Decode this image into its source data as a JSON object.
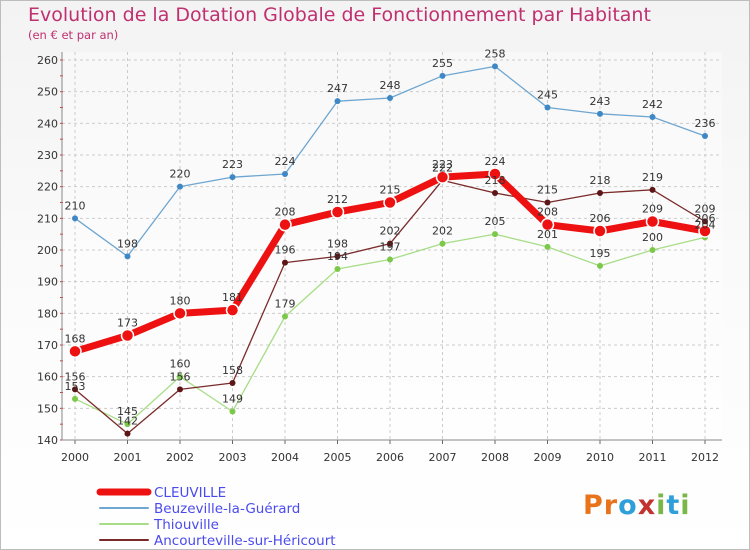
{
  "header": {
    "title": "Evolution de la Dotation Globale de Fonctionnement par Habitant",
    "subtitle": "(en € et par an)"
  },
  "logo": {
    "text": "Proxiti",
    "letters": [
      "P",
      "r",
      "o",
      "x",
      "i",
      "t",
      "i"
    ],
    "colors": [
      "#e8731b",
      "#e8731b",
      "#2e9fd8",
      "#c2332f",
      "#7ab648",
      "#2e9fd8",
      "#7ab648"
    ]
  },
  "chart_data": {
    "type": "line",
    "title": "Evolution de la Dotation Globale de Fonctionnement par Habitant",
    "subtitle": "(en € et par an)",
    "xlabel": "",
    "ylabel": "",
    "x": [
      2000,
      2001,
      2002,
      2003,
      2004,
      2005,
      2006,
      2007,
      2008,
      2009,
      2010,
      2011,
      2012
    ],
    "x_labels": [
      "2000",
      "2001",
      "2002",
      "2003",
      "2004",
      "2005",
      "2006",
      "2007",
      "2008",
      "2009",
      "2010",
      "2011",
      "2012"
    ],
    "ylim": [
      140,
      260
    ],
    "yticks": [
      140,
      150,
      160,
      170,
      180,
      190,
      200,
      210,
      220,
      230,
      240,
      250,
      260
    ],
    "grid": true,
    "legend_position": "bottom-left",
    "series": [
      {
        "name": "CLEUVILLE",
        "color": "#ee1111",
        "marker_color": "#ee1111",
        "emphasis": true,
        "values": [
          168,
          173,
          180,
          181,
          208,
          212,
          215,
          223,
          224,
          208,
          206,
          209,
          206
        ],
        "labels": [
          "168",
          "173",
          "180",
          "181",
          "208",
          "212",
          "215",
          "223",
          "224",
          "208",
          "206",
          "209",
          "206"
        ]
      },
      {
        "name": "Beuzeville-la-Guérard",
        "color": "#6ea6d0",
        "marker_color": "#3f88c5",
        "emphasis": false,
        "values": [
          210,
          198,
          220,
          223,
          224,
          247,
          248,
          255,
          258,
          245,
          243,
          242,
          236
        ],
        "labels": [
          "210",
          "198",
          "220",
          "223",
          "224",
          "247",
          "248",
          "255",
          "258",
          "245",
          "243",
          "242",
          "236"
        ]
      },
      {
        "name": "Thiouville",
        "color": "#a8dd88",
        "marker_color": "#7cc84a",
        "emphasis": false,
        "values": [
          153,
          145,
          160,
          149,
          179,
          194,
          197,
          202,
          205,
          201,
          195,
          200,
          204
        ],
        "labels": [
          "153",
          "145",
          "160",
          "149",
          "179",
          "194",
          "197",
          "202",
          "205",
          "201",
          "195",
          "200",
          "204"
        ]
      },
      {
        "name": "Ancourteville-sur-Héricourt",
        "color": "#7a2a2a",
        "marker_color": "#5e1515",
        "emphasis": false,
        "values": [
          156,
          142,
          156,
          158,
          196,
          198,
          202,
          222,
          218,
          215,
          218,
          219,
          209
        ],
        "labels": [
          "156",
          "142",
          "156",
          "158",
          "196",
          "198",
          "202",
          "222",
          "218",
          "215",
          "218",
          "219",
          "209"
        ]
      }
    ]
  }
}
